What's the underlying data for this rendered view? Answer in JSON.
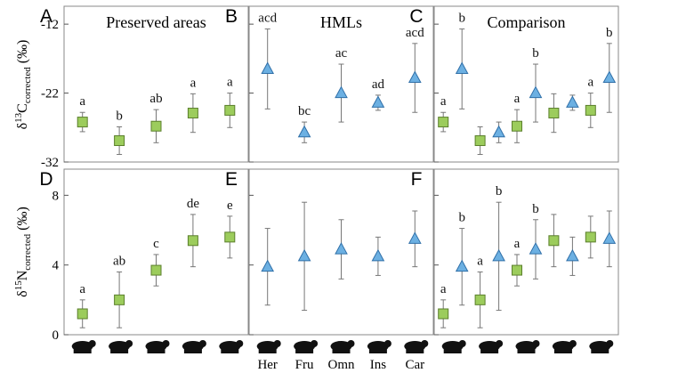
{
  "chart_data": [
    {
      "type": "errorbar",
      "panel_label": "A",
      "title": "Preserved areas",
      "ylabel": {
        "symbol": "δ",
        "sup": "13",
        "main": "C",
        "sub": "corrected",
        "unit": "(‰)"
      },
      "ylim": [
        -32,
        -9.4
      ],
      "yticks": [
        -32,
        -22,
        -12
      ],
      "series": [
        {
          "marker": "square",
          "color": "#9ccc5c",
          "values": [
            -26.2,
            -28.9,
            -26.8,
            -24.9,
            -24.5
          ],
          "errors": [
            1.4,
            2.0,
            2.4,
            2.8,
            2.5
          ],
          "letters": [
            "a",
            "b",
            "ab",
            "a",
            "a"
          ]
        }
      ]
    },
    {
      "type": "errorbar",
      "panel_label": "B",
      "title": "HMLs",
      "ylim": [
        -32,
        -9.4
      ],
      "series": [
        {
          "marker": "triangle",
          "color": "#6cb0e2",
          "values": [
            -18.5,
            -27.7,
            -22.0,
            -23.4,
            -19.8
          ],
          "errors": [
            5.8,
            1.5,
            4.2,
            1.1,
            5.0
          ],
          "letters": [
            "acd",
            "bc",
            "ac",
            "ad",
            "acd"
          ]
        }
      ]
    },
    {
      "type": "errorbar",
      "panel_label": "C",
      "title": "Comparison",
      "ylim": [
        -32,
        -9.4
      ],
      "series": [
        {
          "marker": "square",
          "color": "#9ccc5c",
          "values": [
            -26.2,
            -28.9,
            -26.8,
            -24.9,
            -24.5
          ],
          "errors": [
            1.4,
            2.0,
            2.4,
            2.8,
            2.5
          ],
          "letters": [
            "a",
            null,
            "a",
            null,
            "a"
          ]
        },
        {
          "marker": "triangle",
          "color": "#6cb0e2",
          "values": [
            -18.5,
            -27.7,
            -22.0,
            -23.4,
            -19.8
          ],
          "errors": [
            5.8,
            1.5,
            4.2,
            1.1,
            5.0
          ],
          "letters": [
            "b",
            null,
            "b",
            null,
            "b"
          ]
        }
      ]
    },
    {
      "type": "errorbar",
      "panel_label": "D",
      "ylabel": {
        "symbol": "δ",
        "sup": "15",
        "main": "N",
        "sub": "corrected",
        "unit": "(‰)"
      },
      "ylim": [
        0,
        9.5
      ],
      "yticks": [
        0,
        4,
        8
      ],
      "series": [
        {
          "marker": "square",
          "color": "#9ccc5c",
          "values": [
            1.2,
            2.0,
            3.7,
            5.4,
            5.6
          ],
          "errors": [
            0.8,
            1.6,
            0.9,
            1.5,
            1.2
          ],
          "letters": [
            "a",
            "ab",
            "c",
            "de",
            "e"
          ]
        }
      ]
    },
    {
      "type": "errorbar",
      "panel_label": "E",
      "ylim": [
        0,
        9.5
      ],
      "categories": [
        "Her",
        "Fru",
        "Omn",
        "Ins",
        "Car"
      ],
      "series": [
        {
          "marker": "triangle",
          "color": "#6cb0e2",
          "values": [
            3.9,
            4.5,
            4.9,
            4.5,
            5.5
          ],
          "errors": [
            2.2,
            3.1,
            1.7,
            1.1,
            1.6
          ],
          "letters": [
            null,
            null,
            null,
            null,
            null
          ]
        }
      ]
    },
    {
      "type": "errorbar",
      "panel_label": "F",
      "ylim": [
        0,
        9.5
      ],
      "series": [
        {
          "marker": "square",
          "color": "#9ccc5c",
          "values": [
            1.2,
            2.0,
            3.7,
            5.4,
            5.6
          ],
          "errors": [
            0.8,
            1.6,
            0.9,
            1.5,
            1.2
          ],
          "letters": [
            "a",
            "a",
            "a",
            null,
            null
          ]
        },
        {
          "marker": "triangle",
          "color": "#6cb0e2",
          "values": [
            3.9,
            4.5,
            4.9,
            4.5,
            5.5
          ],
          "errors": [
            2.2,
            3.1,
            1.7,
            1.1,
            1.6
          ],
          "letters": [
            "b",
            "b",
            "b",
            null,
            null
          ]
        }
      ]
    }
  ]
}
